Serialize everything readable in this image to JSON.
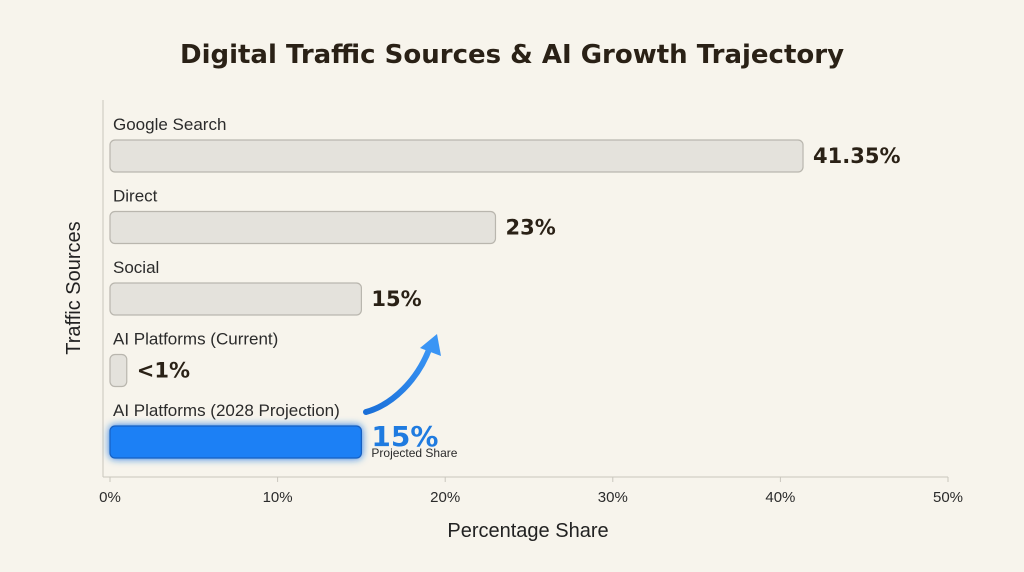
{
  "chart_data": {
    "type": "bar",
    "orientation": "horizontal",
    "title": "Digital Traffic Sources & AI Growth Trajectory",
    "xlabel": "Percentage Share",
    "ylabel": "Traffic Sources",
    "xlim": [
      0,
      50
    ],
    "xticks": [
      "0%",
      "10%",
      "20%",
      "30%",
      "40%",
      "50%"
    ],
    "grid": false,
    "categories": [
      "Google Search",
      "Direct",
      "Social",
      "AI Platforms (Current)",
      "AI Platforms (2028 Projection)"
    ],
    "values": [
      41.35,
      23,
      15,
      1,
      15
    ],
    "value_labels": [
      "41.35%",
      "23%",
      "15%",
      "<1%",
      "15%"
    ],
    "highlight_index": 4,
    "annotation": "Projected Share",
    "colors": {
      "bar": "#e4e2dc",
      "bar_border": "#b9b6ae",
      "accent": "#1e80f5",
      "accent_text": "#1f7be0",
      "background": "#f7f4ec"
    }
  }
}
